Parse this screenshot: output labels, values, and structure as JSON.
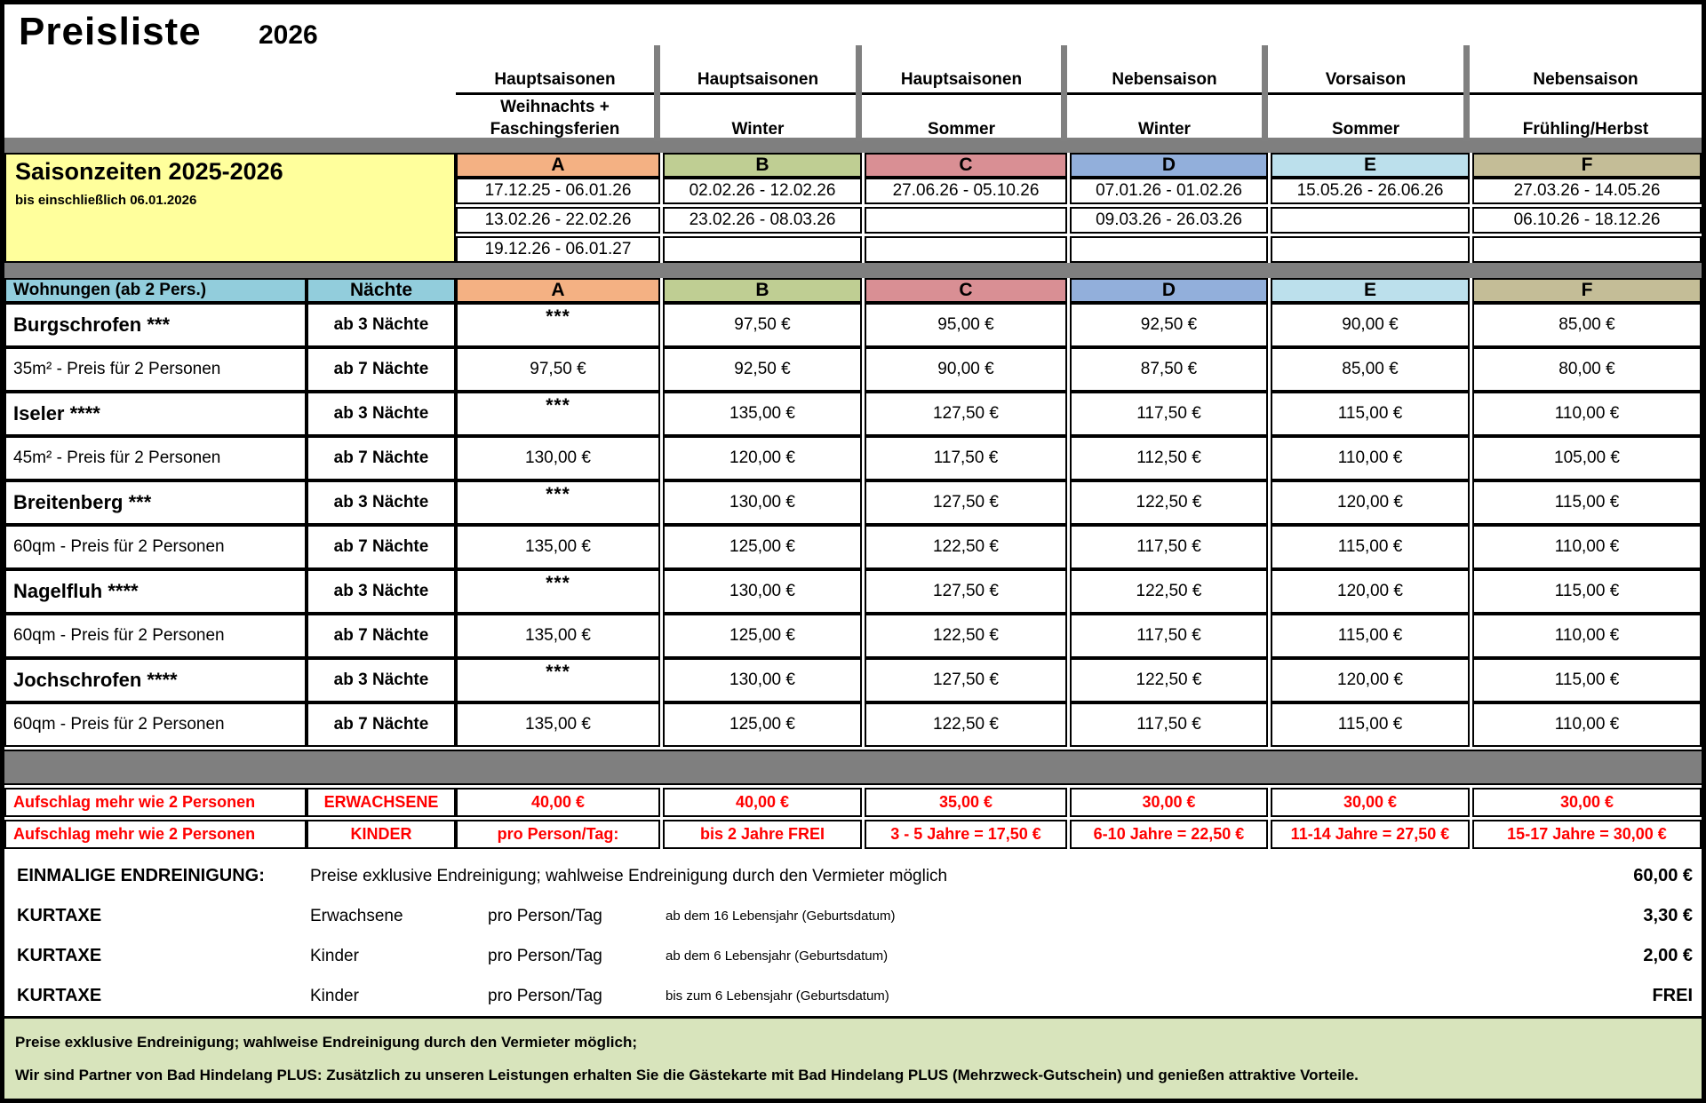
{
  "title": "Preisliste",
  "year": "2026",
  "colors": {
    "A": "#F4B183",
    "B": "#BFCE93",
    "C": "#D98F94",
    "D": "#92AFDB",
    "E": "#BCE0EC",
    "F": "#C4BD97",
    "header_blue": "#92CDDC",
    "yellow": "#FFFF9C",
    "gray_bar": "#7f7f7f",
    "footer_green": "#D8E4BC",
    "accent_red": "#FF0000"
  },
  "letters": [
    "A",
    "B",
    "C",
    "D",
    "E",
    "F"
  ],
  "season_groups": [
    {
      "category": "Hauptsaisonen",
      "mid": "Weihnachts +",
      "label": "Faschingsferien"
    },
    {
      "category": "Hauptsaisonen",
      "mid": "",
      "label": "Winter"
    },
    {
      "category": "Hauptsaisonen",
      "mid": "",
      "label": "Sommer"
    },
    {
      "category": "Nebensaison",
      "mid": "",
      "label": "Winter"
    },
    {
      "category": "Vorsaison",
      "mid": "",
      "label": "Sommer"
    },
    {
      "category": "Nebensaison",
      "mid": "",
      "label": "Frühling/Herbst"
    }
  ],
  "saison": {
    "title": "Saisonzeiten 2025-2026",
    "subtitle": "bis einschließlich 06.01.2026",
    "rows": [
      [
        "17.12.25 - 06.01.26",
        "02.02.26 - 12.02.26",
        "27.06.26 - 05.10.26",
        "07.01.26 - 01.02.26",
        "15.05.26 - 26.06.26",
        "27.03.26 - 14.05.26"
      ],
      [
        "13.02.26 - 22.02.26",
        "23.02.26 - 08.03.26",
        "",
        "09.03.26 - 26.03.26",
        "",
        "06.10.26 - 18.12.26"
      ],
      [
        "19.12.26 - 06.01.27",
        "",
        "",
        "",
        "",
        ""
      ]
    ]
  },
  "main": {
    "header": {
      "apartments": "Wohnungen (ab 2 Pers.)",
      "nights": "Nächte"
    },
    "rows": [
      {
        "label": "Burgschrofen ***",
        "nights": "ab 3 Nächte",
        "prices": [
          "***",
          "97,50 €",
          "95,00 €",
          "92,50 €",
          "90,00 €",
          "85,00 €"
        ]
      },
      {
        "label": "35m² - Preis für 2 Personen",
        "nights": "ab 7 Nächte",
        "prices": [
          "97,50 €",
          "92,50 €",
          "90,00 €",
          "87,50 €",
          "85,00 €",
          "80,00 €"
        ]
      },
      {
        "label": "Iseler ****",
        "nights": "ab 3 Nächte",
        "prices": [
          "***",
          "135,00 €",
          "127,50 €",
          "117,50 €",
          "115,00 €",
          "110,00 €"
        ]
      },
      {
        "label": "45m² - Preis für 2 Personen",
        "nights": "ab 7 Nächte",
        "prices": [
          "130,00 €",
          "120,00 €",
          "117,50 €",
          "112,50 €",
          "110,00 €",
          "105,00 €"
        ]
      },
      {
        "label": "Breitenberg ***",
        "nights": "ab 3 Nächte",
        "prices": [
          "***",
          "130,00 €",
          "127,50 €",
          "122,50 €",
          "120,00 €",
          "115,00 €"
        ]
      },
      {
        "label": "60qm - Preis für 2 Personen",
        "nights": "ab 7 Nächte",
        "prices": [
          "135,00 €",
          "125,00 €",
          "122,50 €",
          "117,50 €",
          "115,00 €",
          "110,00 €"
        ]
      },
      {
        "label": "Nagelfluh ****",
        "nights": "ab 3 Nächte",
        "prices": [
          "***",
          "130,00 €",
          "127,50 €",
          "122,50 €",
          "120,00 €",
          "115,00 €"
        ]
      },
      {
        "label": "60qm - Preis für 2 Personen",
        "nights": "ab 7 Nächte",
        "prices": [
          "135,00 €",
          "125,00 €",
          "122,50 €",
          "117,50 €",
          "115,00 €",
          "110,00 €"
        ]
      },
      {
        "label": "Jochschrofen ****",
        "nights": "ab 3 Nächte",
        "prices": [
          "***",
          "130,00 €",
          "127,50 €",
          "122,50 €",
          "120,00 €",
          "115,00 €"
        ]
      },
      {
        "label": "60qm - Preis für 2 Personen",
        "nights": "ab 7 Nächte",
        "prices": [
          "135,00 €",
          "125,00 €",
          "122,50 €",
          "117,50 €",
          "115,00 €",
          "110,00 €"
        ]
      }
    ]
  },
  "surcharges": [
    {
      "label": "Aufschlag mehr wie 2 Personen",
      "type": "ERWACHSENE",
      "values": [
        "40,00 €",
        "40,00 €",
        "35,00 €",
        "30,00 €",
        "30,00 €",
        "30,00 €"
      ]
    },
    {
      "label": "Aufschlag mehr wie 2 Personen",
      "type": "KINDER",
      "values": [
        "pro Person/Tag:",
        "bis 2 Jahre FREI",
        "3 - 5 Jahre = 17,50 €",
        "6-10 Jahre = 22,50 €",
        "11-14 Jahre = 27,50 €",
        "15-17 Jahre = 30,00 €"
      ]
    }
  ],
  "fees": [
    {
      "label": "EINMALIGE ENDREINIGUNG:",
      "desc": "Preise exklusive Endreinigung; wahlweise Endreinigung durch den Vermieter möglich",
      "value": "60,00 €"
    },
    {
      "label": "KURTAXE",
      "who": "Erwachsene",
      "unit": "pro Person/Tag",
      "note": "ab dem 16 Lebensjahr (Geburtsdatum)",
      "value": "3,30 €"
    },
    {
      "label": "KURTAXE",
      "who": "Kinder",
      "unit": "pro Person/Tag",
      "note": "ab dem 6 Lebensjahr (Geburtsdatum)",
      "value": "2,00 €"
    },
    {
      "label": "KURTAXE",
      "who": "Kinder",
      "unit": "pro Person/Tag",
      "note": "bis zum 6 Lebensjahr (Geburtsdatum)",
      "value": "FREI"
    }
  ],
  "footer": {
    "line1": "Preise exklusive Endreinigung; wahlweise Endreinigung durch den Vermieter möglich;",
    "line2": "Wir sind Partner von Bad Hindelang PLUS: Zusätzlich zu unseren Leistungen erhalten Sie die Gästekarte mit Bad Hindelang PLUS (Mehrzweck-Gutschein) und genießen attraktive Vorteile."
  }
}
